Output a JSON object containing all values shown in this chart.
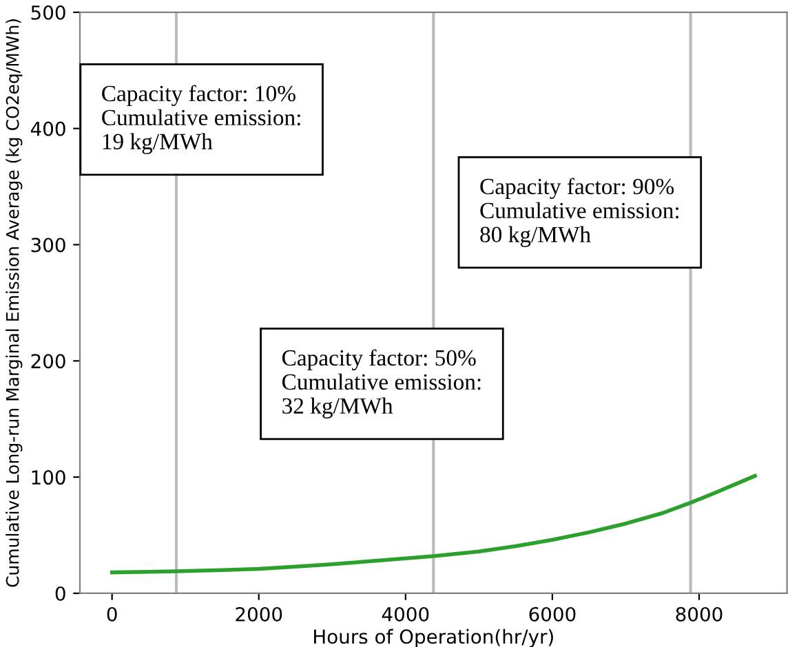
{
  "chart_data": {
    "type": "line",
    "xlabel": "Hours of Operation(hr/yr)",
    "ylabel": "Cumulative Long-run Marginal Emission Average (kg CO2eq/MWh)",
    "series": [
      {
        "color": "#2ca02c",
        "x": [
          0,
          500,
          876,
          1500,
          2000,
          2500,
          3000,
          3500,
          4000,
          4380,
          5000,
          5500,
          6000,
          6500,
          7000,
          7500,
          7884,
          8200,
          8760
        ],
        "values": [
          18,
          18.5,
          19,
          20,
          21,
          23,
          25,
          27.5,
          30,
          32,
          36,
          40.5,
          46,
          52.5,
          60,
          69,
          78,
          86,
          101
        ]
      }
    ],
    "xlim": [
      -438,
      9198
    ],
    "xticks": [
      0,
      2000,
      4000,
      6000,
      8000
    ],
    "ylim": [
      0,
      500
    ],
    "yticks": [
      0,
      100,
      200,
      300,
      400,
      500
    ],
    "ref_lines": [
      {
        "axis": "x",
        "value": 876,
        "color": "#bbbbbb"
      },
      {
        "axis": "x",
        "value": 4380,
        "color": "#bbbbbb"
      },
      {
        "axis": "x",
        "value": 7884,
        "color": "#bbbbbb"
      }
    ],
    "annotations": [
      "Capacity factor: 10%\nCumulative emission:\n19 kg/MWh",
      "Capacity factor: 90%\nCumulative emission:\n80 kg/MWh",
      "Capacity factor: 50%\nCumulative emission:\n32 kg/MWh"
    ],
    "grid": false,
    "legend": false,
    "marker": "none",
    "line_style": "solid"
  }
}
